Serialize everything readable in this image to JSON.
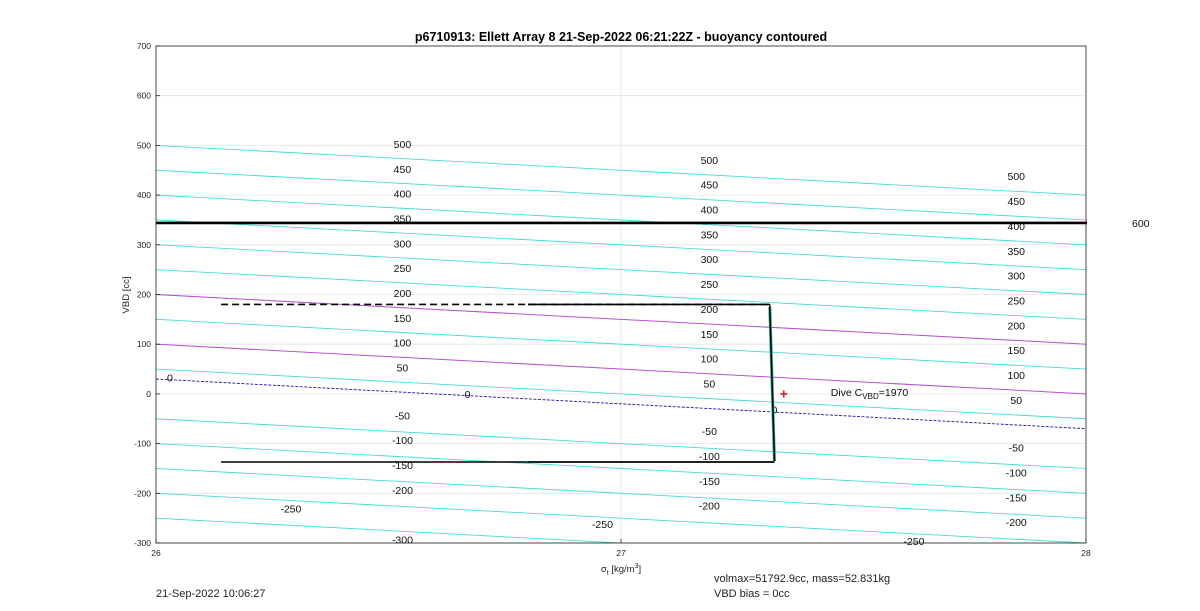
{
  "chart_data": {
    "type": "line",
    "title": "p6710913: Ellett Array 8 21-Sep-2022 06:21:22Z - buoyancy contoured",
    "xlabel_main": "σ",
    "xlabel_sub": "t",
    "xlabel_unit_pre": " [kg/m",
    "xlabel_unit_sup": "3",
    "xlabel_unit_post": "]",
    "ylabel": "VBD [cc]",
    "xlim": [
      26,
      28
    ],
    "ylim": [
      -300,
      700
    ],
    "xticks": [
      "26",
      "27",
      "28"
    ],
    "xtick_values": [
      26,
      27,
      28
    ],
    "yticks": [
      "-300",
      "-200",
      "-100",
      "0",
      "100",
      "200",
      "300",
      "400",
      "500",
      "600",
      "700"
    ],
    "ytick_values": [
      -300,
      -200,
      -100,
      0,
      100,
      200,
      300,
      400,
      500,
      600,
      700
    ],
    "grid": true,
    "contours": {
      "slope_per_sigma": -50,
      "cyan_levels": [
        -300,
        -250,
        -200,
        -150,
        -100,
        -50,
        50,
        100,
        150,
        200,
        250,
        300,
        350,
        400,
        450,
        500
      ],
      "magenta_levels": [
        100,
        200
      ],
      "zero_level": 0,
      "colors": {
        "cyan": "#40e0d0",
        "magenta": "#cc44cc",
        "zero": "#1a1aa0"
      }
    },
    "contour_labels": [
      {
        "text": "500",
        "x": 26.53,
        "y": 503
      },
      {
        "text": "450",
        "x": 26.53,
        "y": 453
      },
      {
        "text": "400",
        "x": 26.53,
        "y": 403
      },
      {
        "text": "350",
        "x": 26.53,
        "y": 353
      },
      {
        "text": "300",
        "x": 26.53,
        "y": 303
      },
      {
        "text": "250",
        "x": 26.53,
        "y": 253
      },
      {
        "text": "200",
        "x": 26.53,
        "y": 203
      },
      {
        "text": "150",
        "x": 26.53,
        "y": 153
      },
      {
        "text": "100",
        "x": 26.53,
        "y": 103
      },
      {
        "text": "50",
        "x": 26.53,
        "y": 53
      },
      {
        "text": "0",
        "x": 26.67,
        "y": 0
      },
      {
        "text": "0",
        "x": 26.03,
        "y": 33
      },
      {
        "text": "-50",
        "x": 26.53,
        "y": -43
      },
      {
        "text": "-100",
        "x": 26.53,
        "y": -93
      },
      {
        "text": "-150",
        "x": 26.53,
        "y": -143
      },
      {
        "text": "-200",
        "x": 26.53,
        "y": -193
      },
      {
        "text": "-250",
        "x": 26.29,
        "y": -231
      },
      {
        "text": "-300",
        "x": 26.53,
        "y": -293
      },
      {
        "text": "500",
        "x": 27.19,
        "y": 471
      },
      {
        "text": "450",
        "x": 27.19,
        "y": 421
      },
      {
        "text": "400",
        "x": 27.19,
        "y": 371
      },
      {
        "text": "350",
        "x": 27.19,
        "y": 321
      },
      {
        "text": "300",
        "x": 27.19,
        "y": 271
      },
      {
        "text": "250",
        "x": 27.19,
        "y": 221
      },
      {
        "text": "200",
        "x": 27.19,
        "y": 171
      },
      {
        "text": "150",
        "x": 27.19,
        "y": 121
      },
      {
        "text": "100",
        "x": 27.19,
        "y": 71
      },
      {
        "text": "50",
        "x": 27.19,
        "y": 21
      },
      {
        "text": "0",
        "x": 27.33,
        "y": -31
      },
      {
        "text": "-50",
        "x": 27.19,
        "y": -75
      },
      {
        "text": "-100",
        "x": 27.19,
        "y": -125
      },
      {
        "text": "-150",
        "x": 27.19,
        "y": -175
      },
      {
        "text": "-200",
        "x": 27.19,
        "y": -225
      },
      {
        "text": "-250",
        "x": 26.96,
        "y": -262
      },
      {
        "text": "500",
        "x": 27.85,
        "y": 438
      },
      {
        "text": "450",
        "x": 27.85,
        "y": 388
      },
      {
        "text": "400",
        "x": 27.85,
        "y": 338
      },
      {
        "text": "350",
        "x": 27.85,
        "y": 288
      },
      {
        "text": "300",
        "x": 27.85,
        "y": 238
      },
      {
        "text": "250",
        "x": 27.85,
        "y": 188
      },
      {
        "text": "200",
        "x": 27.85,
        "y": 138
      },
      {
        "text": "150",
        "x": 27.85,
        "y": 88
      },
      {
        "text": "100",
        "x": 27.85,
        "y": 38
      },
      {
        "text": "50",
        "x": 27.85,
        "y": -12
      },
      {
        "text": "-50",
        "x": 27.85,
        "y": -108
      },
      {
        "text": "-100",
        "x": 27.85,
        "y": -158
      },
      {
        "text": "-150",
        "x": 27.85,
        "y": -208
      },
      {
        "text": "-200",
        "x": 27.85,
        "y": -258
      },
      {
        "text": "-250",
        "x": 27.63,
        "y": -296
      }
    ],
    "volmax_line": {
      "y": 340,
      "label": "600"
    },
    "dive_segments": [
      {
        "name": "upper",
        "x": [
          26.14,
          27.32
        ],
        "y": [
          180,
          180
        ],
        "x_mid": 26.8,
        "color_left": "#f5e61a",
        "color_right": "#2a9d8f"
      },
      {
        "name": "lower",
        "x": [
          26.14,
          27.33
        ],
        "y": [
          -137,
          -137
        ],
        "x_mid": 26.8,
        "color_left": "#3b2f8f",
        "color_right": "#2a9d8f"
      }
    ],
    "vertical_profile": {
      "x": [
        27.32,
        27.33
      ],
      "y": [
        175,
        -135
      ]
    },
    "dive_marker": {
      "x": 27.35,
      "y": 0,
      "label_main": "Dive C",
      "label_sub": "VBD",
      "label_value": "=1970"
    }
  },
  "footer": {
    "date": "21-Sep-2022 10:06:27",
    "volmax": "volmax=51792.9cc, mass=52.831kg",
    "bias": "VBD bias = 0cc"
  }
}
